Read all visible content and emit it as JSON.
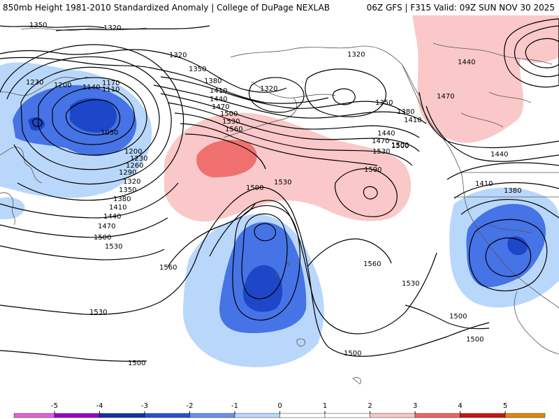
{
  "header": {
    "title": "850mb Height 1981-2010 Standardized Anomaly | College of DuPage NEXLAB",
    "run_info": "06Z GFS | F315 Valid: 09Z SUN NOV 30 2025"
  },
  "colorbar": {
    "ticks": [
      "-5",
      "-4",
      "-3",
      "-2",
      "-1",
      "0",
      "1",
      "2",
      "3",
      "4",
      "5"
    ],
    "colors": [
      "#e060e0",
      "#9900cc",
      "#1432aa",
      "#2850d8",
      "#6690f0",
      "#bcd8fc",
      "#ffffff",
      "#ffffff",
      "#fcc8c8",
      "#f06464",
      "#cc1414",
      "#e08800",
      "#ffb000"
    ]
  },
  "contour_labels": [
    "1350",
    "1320",
    "1320",
    "1350",
    "1320",
    "1380",
    "1410",
    "1440",
    "1470",
    "1500",
    "1530",
    "1560",
    "1320",
    "1350",
    "1380",
    "1410",
    "1440",
    "1470",
    "1500",
    "1530",
    "1230",
    "1200",
    "1140",
    "1170",
    "1110",
    "1050",
    "1200",
    "1230",
    "1260",
    "1290",
    "1320",
    "1350",
    "1380",
    "1410",
    "1440",
    "1470",
    "1500",
    "1530",
    "1560",
    "1500",
    "1530",
    "1590",
    "1560",
    "1530",
    "1530",
    "1500",
    "1500",
    "1500",
    "1440",
    "1470",
    "1440",
    "1410",
    "1380",
    "1500",
    "1500"
  ],
  "legend_colors": {
    "strong_negative": "#1e46c8",
    "negative": "#4673e6",
    "weak_negative": "#b9d7fa",
    "weak_positive": "#fac8c8",
    "positive": "#f07070",
    "contour": "#000000",
    "coastline": "#555555"
  }
}
